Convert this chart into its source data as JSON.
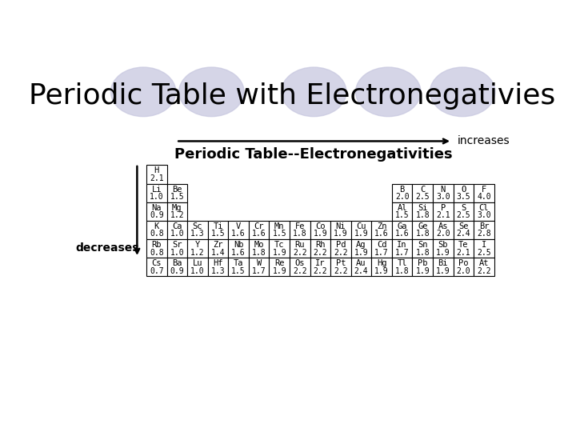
{
  "title": "Periodic Table with Electronegativies",
  "subtitle": "Periodic Table--Electronegativities",
  "increases_label": "increases",
  "decreases_label": "decreases",
  "background_color": "#ffffff",
  "title_color": "#000000",
  "title_fontsize": 26,
  "subtitle_fontsize": 13,
  "ellipse_color": "#c8c8e0",
  "elements": [
    {
      "symbol": "H",
      "en": "2.1",
      "col": 1,
      "row": 1
    },
    {
      "symbol": "Li",
      "en": "1.0",
      "col": 1,
      "row": 2
    },
    {
      "symbol": "Be",
      "en": "1.5",
      "col": 2,
      "row": 2
    },
    {
      "symbol": "B",
      "en": "2.0",
      "col": 13,
      "row": 2
    },
    {
      "symbol": "C",
      "en": "2.5",
      "col": 14,
      "row": 2
    },
    {
      "symbol": "N",
      "en": "3.0",
      "col": 15,
      "row": 2
    },
    {
      "symbol": "O",
      "en": "3.5",
      "col": 16,
      "row": 2
    },
    {
      "symbol": "F",
      "en": "4.0",
      "col": 17,
      "row": 2
    },
    {
      "symbol": "Na",
      "en": "0.9",
      "col": 1,
      "row": 3
    },
    {
      "symbol": "Mg",
      "en": "1.2",
      "col": 2,
      "row": 3
    },
    {
      "symbol": "Al",
      "en": "1.5",
      "col": 13,
      "row": 3
    },
    {
      "symbol": "Si",
      "en": "1.8",
      "col": 14,
      "row": 3
    },
    {
      "symbol": "P",
      "en": "2.1",
      "col": 15,
      "row": 3
    },
    {
      "symbol": "S",
      "en": "2.5",
      "col": 16,
      "row": 3
    },
    {
      "symbol": "Cl",
      "en": "3.0",
      "col": 17,
      "row": 3
    },
    {
      "symbol": "K",
      "en": "0.8",
      "col": 1,
      "row": 4
    },
    {
      "symbol": "Ca",
      "en": "1.0",
      "col": 2,
      "row": 4
    },
    {
      "symbol": "Sc",
      "en": "1.3",
      "col": 3,
      "row": 4
    },
    {
      "symbol": "Ti",
      "en": "1.5",
      "col": 4,
      "row": 4
    },
    {
      "symbol": "V",
      "en": "1.6",
      "col": 5,
      "row": 4
    },
    {
      "symbol": "Cr",
      "en": "1.6",
      "col": 6,
      "row": 4
    },
    {
      "symbol": "Mn",
      "en": "1.5",
      "col": 7,
      "row": 4
    },
    {
      "symbol": "Fe",
      "en": "1.8",
      "col": 8,
      "row": 4
    },
    {
      "symbol": "Co",
      "en": "1.9",
      "col": 9,
      "row": 4
    },
    {
      "symbol": "Ni",
      "en": "1.9",
      "col": 10,
      "row": 4
    },
    {
      "symbol": "Cu",
      "en": "1.9",
      "col": 11,
      "row": 4
    },
    {
      "symbol": "Zn",
      "en": "1.6",
      "col": 12,
      "row": 4
    },
    {
      "symbol": "Ga",
      "en": "1.6",
      "col": 13,
      "row": 4
    },
    {
      "symbol": "Ge",
      "en": "1.8",
      "col": 14,
      "row": 4
    },
    {
      "symbol": "As",
      "en": "2.0",
      "col": 15,
      "row": 4
    },
    {
      "symbol": "Se",
      "en": "2.4",
      "col": 16,
      "row": 4
    },
    {
      "symbol": "Br",
      "en": "2.8",
      "col": 17,
      "row": 4
    },
    {
      "symbol": "Rb",
      "en": "0.8",
      "col": 1,
      "row": 5
    },
    {
      "symbol": "Sr",
      "en": "1.0",
      "col": 2,
      "row": 5
    },
    {
      "symbol": "Y",
      "en": "1.2",
      "col": 3,
      "row": 5
    },
    {
      "symbol": "Zr",
      "en": "1.4",
      "col": 4,
      "row": 5
    },
    {
      "symbol": "Nb",
      "en": "1.6",
      "col": 5,
      "row": 5
    },
    {
      "symbol": "Mo",
      "en": "1.8",
      "col": 6,
      "row": 5
    },
    {
      "symbol": "Tc",
      "en": "1.9",
      "col": 7,
      "row": 5
    },
    {
      "symbol": "Ru",
      "en": "2.2",
      "col": 8,
      "row": 5
    },
    {
      "symbol": "Rh",
      "en": "2.2",
      "col": 9,
      "row": 5
    },
    {
      "symbol": "Pd",
      "en": "2.2",
      "col": 10,
      "row": 5
    },
    {
      "symbol": "Ag",
      "en": "1.9",
      "col": 11,
      "row": 5
    },
    {
      "symbol": "Cd",
      "en": "1.7",
      "col": 12,
      "row": 5
    },
    {
      "symbol": "In",
      "en": "1.7",
      "col": 13,
      "row": 5
    },
    {
      "symbol": "Sn",
      "en": "1.8",
      "col": 14,
      "row": 5
    },
    {
      "symbol": "Sb",
      "en": "1.9",
      "col": 15,
      "row": 5
    },
    {
      "symbol": "Te",
      "en": "2.1",
      "col": 16,
      "row": 5
    },
    {
      "symbol": "I",
      "en": "2.5",
      "col": 17,
      "row": 5
    },
    {
      "symbol": "Cs",
      "en": "0.7",
      "col": 1,
      "row": 6
    },
    {
      "symbol": "Ba",
      "en": "0.9",
      "col": 2,
      "row": 6
    },
    {
      "symbol": "Lu",
      "en": "1.0",
      "col": 3,
      "row": 6
    },
    {
      "symbol": "Hf",
      "en": "1.3",
      "col": 4,
      "row": 6
    },
    {
      "symbol": "Ta",
      "en": "1.5",
      "col": 5,
      "row": 6
    },
    {
      "symbol": "W",
      "en": "1.7",
      "col": 6,
      "row": 6
    },
    {
      "symbol": "Re",
      "en": "1.9",
      "col": 7,
      "row": 6
    },
    {
      "symbol": "Os",
      "en": "2.2",
      "col": 8,
      "row": 6
    },
    {
      "symbol": "Ir",
      "en": "2.2",
      "col": 9,
      "row": 6
    },
    {
      "symbol": "Pt",
      "en": "2.2",
      "col": 10,
      "row": 6
    },
    {
      "symbol": "Au",
      "en": "2.4",
      "col": 11,
      "row": 6
    },
    {
      "symbol": "Hg",
      "en": "1.9",
      "col": 12,
      "row": 6
    },
    {
      "symbol": "Tl",
      "en": "1.8",
      "col": 13,
      "row": 6
    },
    {
      "symbol": "Pb",
      "en": "1.9",
      "col": 14,
      "row": 6
    },
    {
      "symbol": "Bi",
      "en": "1.9",
      "col": 15,
      "row": 6
    },
    {
      "symbol": "Po",
      "en": "2.0",
      "col": 16,
      "row": 6
    },
    {
      "symbol": "At",
      "en": "2.2",
      "col": 17,
      "row": 6
    }
  ]
}
